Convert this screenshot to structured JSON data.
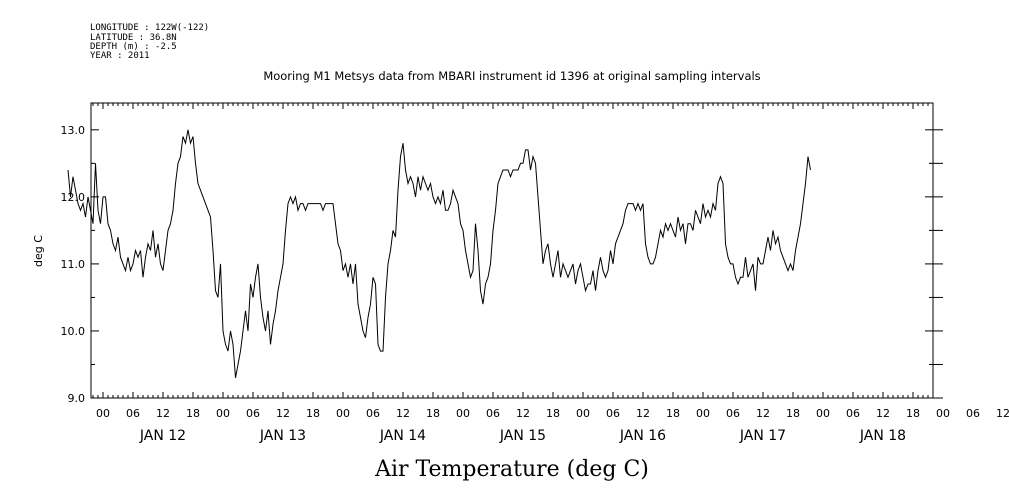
{
  "header": {
    "longitude": "LONGITUDE : 122W(-122)",
    "latitude": "LATITUDE : 36.8N",
    "depth": "DEPTH (m) : -2.5",
    "year": "YEAR : 2011"
  },
  "chart_data": {
    "type": "line",
    "title": "Mooring M1 Metsys data from MBARI instrument id 1396 at original sampling intervals",
    "xlabel": "Air Temperature (deg C)",
    "ylabel": "deg C",
    "ylim": [
      9.0,
      13.4
    ],
    "yticks": [
      "9.0",
      "10.0",
      "11.0",
      "12.0",
      "13.0"
    ],
    "x_hour_labels": [
      "00",
      "06",
      "12",
      "18",
      "00",
      "06",
      "12",
      "18",
      "00",
      "06",
      "12",
      "18",
      "00",
      "06",
      "12",
      "18",
      "00",
      "06",
      "12",
      "18",
      "00",
      "06",
      "12",
      "18",
      "00",
      "06",
      "12",
      "18",
      "00",
      "06",
      "12",
      "18",
      "00",
      "06",
      "12",
      "18",
      "00",
      "06",
      "12",
      "18",
      "00",
      "06",
      "12",
      "18",
      "00",
      "06",
      "12",
      "18"
    ],
    "x_day_labels": [
      "JAN 12",
      "JAN 13",
      "JAN 14",
      "JAN 15",
      "JAN 16",
      "JAN 17",
      "JAN 18"
    ],
    "grid": false,
    "series": [
      {
        "x_hours_since_jan12_00": [
          -7,
          -6.5,
          -6,
          -5.5,
          -5,
          -4.5,
          -4,
          -3.5,
          -3,
          -2.5,
          -2,
          -1.5,
          -1,
          -0.5,
          0,
          0.5,
          1,
          1.5,
          2,
          2.5,
          3,
          3.5,
          4,
          4.5,
          5,
          5.5,
          6,
          6.5,
          7,
          7.5,
          8,
          8.5,
          9,
          9.5,
          10,
          10.5,
          11,
          11.5,
          12,
          12.5,
          13,
          13.5,
          14,
          14.5,
          15,
          15.5,
          16,
          16.5,
          17,
          17.5,
          18,
          18.5,
          19,
          19.5,
          20,
          20.5,
          21,
          21.5,
          22,
          22.5,
          23,
          23.5,
          24,
          24.5,
          25,
          25.5,
          26,
          26.5,
          27,
          27.5,
          28,
          28.5,
          29,
          29.5,
          30,
          30.5,
          31,
          31.5,
          32,
          32.5,
          33,
          33.5,
          34,
          34.5,
          35,
          35.5,
          36,
          36.5,
          37,
          37.5,
          38,
          38.5,
          39,
          39.5,
          40,
          40.5,
          41,
          41.5,
          42,
          42.5,
          43,
          43.5,
          44,
          44.5,
          45,
          45.5,
          46,
          46.5,
          47,
          47.5,
          48,
          48.5,
          49,
          49.5,
          50,
          50.5,
          51,
          51.5,
          52,
          52.5,
          53,
          53.5,
          54,
          54.5,
          55,
          55.5,
          56,
          56.5,
          57,
          57.5,
          58,
          58.5,
          59,
          59.5,
          60,
          60.5,
          61,
          61.5,
          62,
          62.5,
          63,
          63.5,
          64,
          64.5,
          65,
          65.5,
          66,
          66.5,
          67,
          67.5,
          68,
          68.5,
          69,
          69.5,
          70,
          70.5,
          71,
          71.5,
          72,
          72.5,
          73,
          73.5,
          74,
          74.5,
          75,
          75.5,
          76,
          76.5,
          77,
          77.5,
          78,
          78.5,
          79,
          79.5,
          80,
          80.5,
          81,
          81.5,
          82,
          82.5,
          83,
          83.5,
          84,
          84.5,
          85,
          85.5,
          86,
          86.5,
          87,
          87.5,
          88,
          88.5,
          89,
          89.5,
          90,
          90.5,
          91,
          91.5,
          92,
          92.5,
          93,
          93.5,
          94,
          94.5,
          95,
          95.5,
          96,
          96.5,
          97,
          97.5,
          98,
          98.5,
          99,
          99.5,
          100,
          100.5,
          101,
          101.5,
          102,
          102.5,
          103,
          103.5,
          104,
          104.5,
          105,
          105.5,
          106,
          106.5,
          107,
          107.5,
          108,
          108.5,
          109,
          109.5,
          110,
          110.5,
          111,
          111.5,
          112,
          112.5,
          113,
          113.5,
          114,
          114.5,
          115,
          115.5,
          116,
          116.5,
          117,
          117.5,
          118,
          118.5,
          119,
          119.5,
          120,
          120.5,
          121,
          121.5,
          122,
          122.5,
          123,
          123.5,
          124,
          124.5,
          125,
          125.5,
          126,
          126.5,
          127,
          127.5,
          128,
          128.5,
          129,
          129.5,
          130,
          130.5,
          131,
          131.5,
          132,
          132.5,
          133,
          133.5,
          134,
          134.5,
          135,
          135.5,
          136,
          136.5,
          137,
          137.5,
          138,
          138.5,
          139,
          139.5,
          140,
          140.5,
          141,
          141.5,
          142,
          142.5,
          143,
          143.5,
          144,
          144.5,
          145,
          145.5,
          146,
          146.5,
          147,
          147.5,
          148,
          148.5,
          149,
          149.5,
          150,
          150.5,
          151,
          151.5,
          152,
          152.5,
          153,
          153.5,
          154,
          154.5,
          155,
          155.5,
          156,
          156.5,
          157,
          157.5,
          158,
          158.5,
          159,
          159.5,
          160,
          160.5,
          161,
          161.5,
          162,
          162.5,
          163,
          163.5,
          164,
          164.5,
          165,
          165.5,
          166,
          166.5,
          167,
          167.5,
          168
        ],
        "y": [
          12.4,
          12.0,
          12.3,
          12.1,
          11.9,
          11.8,
          11.9,
          11.7,
          12.0,
          11.8,
          11.6,
          12.5,
          11.8,
          11.6,
          12.0,
          12.0,
          11.6,
          11.5,
          11.3,
          11.2,
          11.4,
          11.1,
          11.0,
          10.9,
          11.1,
          10.9,
          11.0,
          11.2,
          11.1,
          11.2,
          10.8,
          11.1,
          11.3,
          11.2,
          11.5,
          11.1,
          11.3,
          11.0,
          10.9,
          11.2,
          11.5,
          11.6,
          11.8,
          12.2,
          12.5,
          12.6,
          12.9,
          12.8,
          13.0,
          12.8,
          12.9,
          12.5,
          12.2,
          12.1,
          12.0,
          11.9,
          11.8,
          11.7,
          11.2,
          10.6,
          10.5,
          11.0,
          10.0,
          9.8,
          9.7,
          10.0,
          9.8,
          9.3,
          9.5,
          9.7,
          10.0,
          10.3,
          10.0,
          10.7,
          10.5,
          10.8,
          11.0,
          10.5,
          10.2,
          10.0,
          10.3,
          9.8,
          10.1,
          10.3,
          10.6,
          10.8,
          11.0,
          11.5,
          11.9,
          12.0,
          11.9,
          12.0,
          11.8,
          11.9,
          11.9,
          11.8,
          11.9,
          11.9,
          11.9,
          11.9,
          11.9,
          11.9,
          11.8,
          11.9,
          11.9,
          11.9,
          11.9,
          11.6,
          11.3,
          11.2,
          10.9,
          11.0,
          10.8,
          11.0,
          10.7,
          11.0,
          10.4,
          10.2,
          10.0,
          9.9,
          10.2,
          10.4,
          10.8,
          10.7,
          9.8,
          9.7,
          9.7,
          10.5,
          11.0,
          11.2,
          11.5,
          11.4,
          12.1,
          12.6,
          12.8,
          12.4,
          12.2,
          12.3,
          12.2,
          12.0,
          12.3,
          12.1,
          12.3,
          12.2,
          12.1,
          12.2,
          12.0,
          11.9,
          12.0,
          11.9,
          12.1,
          11.8,
          11.8,
          11.9,
          12.1,
          12.0,
          11.9,
          11.6,
          11.5,
          11.2,
          11.0,
          10.8,
          10.9,
          11.6,
          11.2,
          10.6,
          10.4,
          10.7,
          10.8,
          11.0,
          11.5,
          11.8,
          12.2,
          12.3,
          12.4,
          12.4,
          12.4,
          12.3,
          12.4,
          12.4,
          12.4,
          12.5,
          12.5,
          12.7,
          12.7,
          12.4,
          12.6,
          12.5,
          12.0,
          11.5,
          11.0,
          11.2,
          11.3,
          11.0,
          10.8,
          11.0,
          11.2,
          10.8,
          11.0,
          10.9,
          10.8,
          10.9,
          11.0,
          10.7,
          10.9,
          11.0,
          10.8,
          10.6,
          10.7,
          10.7,
          10.9,
          10.6,
          10.9,
          11.1,
          10.9,
          10.8,
          10.9,
          11.2,
          11.0,
          11.3,
          11.4,
          11.5,
          11.6,
          11.8,
          11.9,
          11.9,
          11.9,
          11.8,
          11.9,
          11.8,
          11.9,
          11.3,
          11.1,
          11.0,
          11.0,
          11.1,
          11.3,
          11.5,
          11.4,
          11.6,
          11.5,
          11.6,
          11.5,
          11.4,
          11.7,
          11.5,
          11.6,
          11.3,
          11.6,
          11.6,
          11.5,
          11.8,
          11.7,
          11.6,
          11.9,
          11.7,
          11.8,
          11.7,
          11.9,
          11.8,
          12.2,
          12.3,
          12.2,
          11.3,
          11.1,
          11.0,
          11.0,
          10.8,
          10.7,
          10.8,
          10.8,
          11.1,
          10.8,
          10.9,
          11.0,
          10.6,
          11.1,
          11.0,
          11.0,
          11.2,
          11.4,
          11.2,
          11.5,
          11.3,
          11.4,
          11.2,
          11.1,
          11.0,
          10.9,
          11.0,
          10.9,
          11.2,
          11.4,
          11.6,
          11.9,
          12.2,
          12.6,
          12.4
        ]
      }
    ]
  }
}
